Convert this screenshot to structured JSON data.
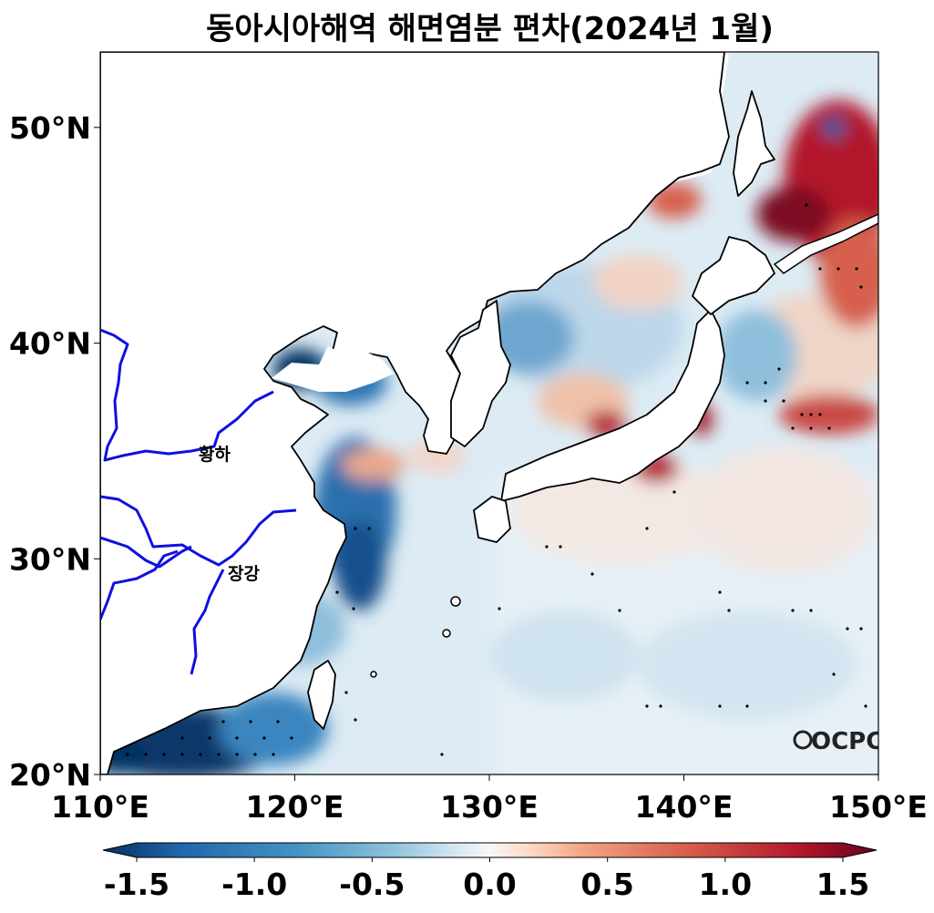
{
  "title": "동아시아해역 해면염분 편차(2024년 1월)",
  "map": {
    "lon_range": [
      110,
      150
    ],
    "lat_range": [
      20,
      53.5
    ],
    "x_ticks": [
      {
        "value": 110,
        "label": "110°E"
      },
      {
        "value": 120,
        "label": "120°E"
      },
      {
        "value": 130,
        "label": "130°E"
      },
      {
        "value": 140,
        "label": "140°E"
      },
      {
        "value": 150,
        "label": "150°E"
      }
    ],
    "y_ticks": [
      {
        "value": 20,
        "label": "20°N"
      },
      {
        "value": 30,
        "label": "30°N"
      },
      {
        "value": 40,
        "label": "40°N"
      },
      {
        "value": 50,
        "label": "50°N"
      }
    ],
    "river_labels": {
      "yellow_river": "황하",
      "yangtze": "장강"
    },
    "logo": "OCPC",
    "colors": {
      "river": "#1010e0",
      "coast": "#000000",
      "land": "#ffffff"
    }
  },
  "colorbar": {
    "min": -1.5,
    "max": 1.5,
    "ticks": [
      {
        "value": -1.5,
        "label": "-1.5"
      },
      {
        "value": -1.0,
        "label": "-1.0"
      },
      {
        "value": -0.5,
        "label": "-0.5"
      },
      {
        "value": 0.0,
        "label": "0.0"
      },
      {
        "value": 0.5,
        "label": "0.5"
      },
      {
        "value": 1.0,
        "label": "1.0"
      },
      {
        "value": 1.5,
        "label": "1.5"
      }
    ],
    "colormap": "RdBu_r"
  }
}
